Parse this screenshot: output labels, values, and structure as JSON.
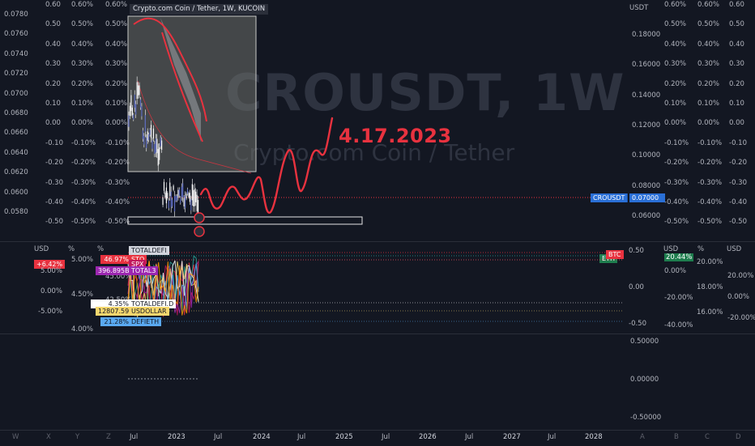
{
  "symbol": {
    "legend": "Crypto.com Coin / Tether, 1W, KUCOIN",
    "watermark_ticker": "CROUSDT, 1W",
    "watermark_name": "Crypto.com Coin / Tether"
  },
  "annotation": {
    "text": "4.17.2023",
    "color": "#e8323f"
  },
  "colors": {
    "background": "#131722",
    "red_line": "#e8323f",
    "price_tag": "#2a6fd6",
    "grid": "#2a2e39"
  },
  "left_axes": {
    "col1": [
      "0.0780",
      "0.0760",
      "0.0740",
      "0.0720",
      "0.0700",
      "0.0680",
      "0.0660",
      "0.0640",
      "0.0620",
      "0.0600",
      "0.0580"
    ],
    "col2": [
      "0.60",
      "0.50",
      "0.40",
      "0.30",
      "0.20",
      "0.10",
      "0.00",
      "-0.10",
      "-0.20",
      "-0.30",
      "-0.40",
      "-0.50"
    ],
    "col3": [
      "0.60%",
      "0.50%",
      "0.40%",
      "0.30%",
      "0.20%",
      "0.10%",
      "0.00%",
      "-0.10%",
      "-0.20%",
      "-0.30%",
      "-0.40%",
      "-0.50%"
    ],
    "col4": [
      "0.60%",
      "0.50%",
      "0.40%",
      "0.30%",
      "0.20%",
      "0.10%",
      "0.00%",
      "-0.10%",
      "-0.20%",
      "-0.30%",
      "-0.40%",
      "-0.50%"
    ]
  },
  "right_axes": {
    "usdt_header": "USDT",
    "usdt": [
      "0.18000",
      "0.16000",
      "0.14000",
      "0.12000",
      "0.10000",
      "0.08000",
      "0.06000"
    ],
    "col_a": [
      "0.60%",
      "0.50%",
      "0.40%",
      "0.30%",
      "0.20%",
      "0.10%",
      "0.00%",
      "-0.10%",
      "-0.20%",
      "-0.30%",
      "-0.40%",
      "-0.50%"
    ],
    "col_b": [
      "0.60%",
      "0.50%",
      "0.40%",
      "0.30%",
      "0.20%",
      "0.10%",
      "0.00%",
      "-0.10%",
      "-0.20%",
      "-0.30%",
      "-0.40%",
      "-0.50%"
    ],
    "col_c": [
      "0.60",
      "0.50",
      "0.40",
      "0.30",
      "0.20",
      "0.10",
      "0.00",
      "-0.10",
      "-0.20",
      "-0.30",
      "-0.40",
      "-0.50"
    ]
  },
  "price_tag": {
    "symbol": "CROUSDT",
    "price": "0.07000"
  },
  "pane2": {
    "headers": {
      "usd": "USD",
      "pct1": "%",
      "pct2": "%",
      "r_usd": "USD",
      "r_pct": "%",
      "r_usd2": "USD"
    },
    "change_badge": "+6.42%",
    "left_usd": [
      "5.00%",
      "0.00%",
      "-5.00%"
    ],
    "left_pct": [
      "5.00%",
      "4.50%",
      "4.00%"
    ],
    "left_pct2": [
      "45.00%",
      "42.50%"
    ],
    "legend_rows": [
      {
        "value": "",
        "label": "TOTALDEFI"
      },
      {
        "value": "46.97%",
        "label": "STO"
      },
      {
        "value": "",
        "label": "SPX"
      },
      {
        "value": "396.895B",
        "label": "TOTAL3"
      },
      {
        "value": "4.35%",
        "label": "TOTALDEFI.D"
      },
      {
        "value": "12807.59",
        "label": "USDOLLAR"
      },
      {
        "value": "21.28%",
        "label": "DEFIETH"
      }
    ],
    "right_main": [
      "0.50",
      "0.00",
      "-0.50"
    ],
    "btc_tag": "BTC",
    "eth_tag": "ETH",
    "right_b": [
      "20.44%",
      "0.00%",
      "-20.00%",
      "-40.00%"
    ],
    "right_c": [
      "20.00%",
      "18.00%",
      "16.00%"
    ],
    "right_d": [
      "20.00%",
      "0.00%",
      "-20.00%"
    ]
  },
  "pane3": {
    "scale": [
      "0.50000",
      "0.00000",
      "-0.50000"
    ]
  },
  "time_axis": [
    "Jul",
    "2023",
    "Jul",
    "2024",
    "Jul",
    "2025",
    "Jul",
    "2026",
    "Jul",
    "2027",
    "Jul",
    "2028"
  ],
  "bottom_letters_left": [
    "W",
    "X",
    "Y",
    "Z"
  ],
  "bottom_letters_right": [
    "A",
    "B",
    "C",
    "D"
  ]
}
